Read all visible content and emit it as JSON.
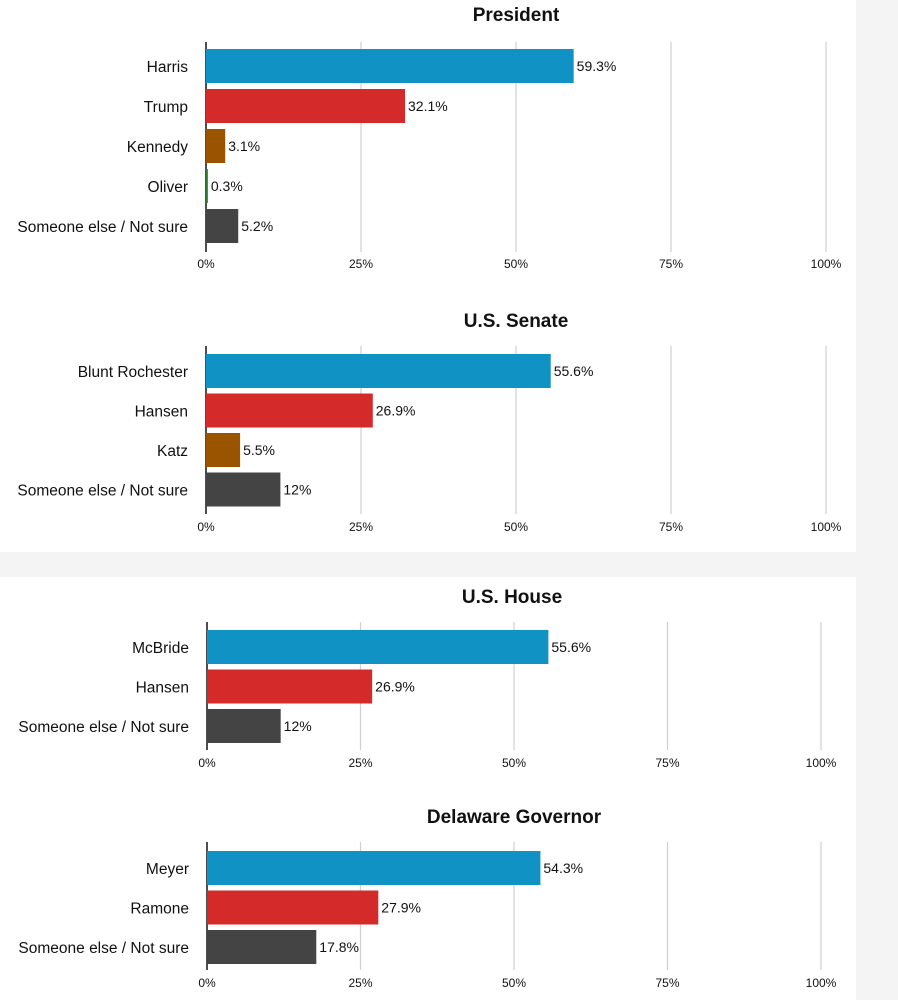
{
  "colors": {
    "blue": "#1192c4",
    "red": "#d42a2a",
    "brown": "#9a5400",
    "green": "#2e7d32",
    "gray": "#444444"
  },
  "chart_data": [
    {
      "type": "bar",
      "orientation": "horizontal",
      "title": "President",
      "categories": [
        "Harris",
        "Trump",
        "Kennedy",
        "Oliver",
        "Someone else / Not sure"
      ],
      "values": [
        59.3,
        32.1,
        3.1,
        0.3,
        5.2
      ],
      "value_labels": [
        "59.3%",
        "32.1%",
        "3.1%",
        "0.3%",
        "5.2%"
      ],
      "bar_colors": [
        "#1192c4",
        "#d42a2a",
        "#9a5400",
        "#2e7d32",
        "#444444"
      ],
      "xlim": [
        0,
        100
      ],
      "xticks": [
        "0%",
        "25%",
        "50%",
        "75%",
        "100%"
      ],
      "grid": true
    },
    {
      "type": "bar",
      "orientation": "horizontal",
      "title": "U.S. Senate",
      "categories": [
        "Blunt Rochester",
        "Hansen",
        "Katz",
        "Someone else / Not sure"
      ],
      "values": [
        55.6,
        26.9,
        5.5,
        12
      ],
      "value_labels": [
        "55.6%",
        "26.9%",
        "5.5%",
        "12%"
      ],
      "bar_colors": [
        "#1192c4",
        "#d42a2a",
        "#9a5400",
        "#444444"
      ],
      "xlim": [
        0,
        100
      ],
      "xticks": [
        "0%",
        "25%",
        "50%",
        "75%",
        "100%"
      ],
      "grid": true
    },
    {
      "type": "bar",
      "orientation": "horizontal",
      "title": "U.S. House",
      "categories": [
        "McBride",
        "Hansen",
        "Someone else / Not sure"
      ],
      "values": [
        55.6,
        26.9,
        12
      ],
      "value_labels": [
        "55.6%",
        "26.9%",
        "12%"
      ],
      "bar_colors": [
        "#1192c4",
        "#d42a2a",
        "#444444"
      ],
      "xlim": [
        0,
        100
      ],
      "xticks": [
        "0%",
        "25%",
        "50%",
        "75%",
        "100%"
      ],
      "grid": true
    },
    {
      "type": "bar",
      "orientation": "horizontal",
      "title": "Delaware Governor",
      "categories": [
        "Meyer",
        "Ramone",
        "Someone else / Not sure"
      ],
      "values": [
        54.3,
        27.9,
        17.8
      ],
      "value_labels": [
        "54.3%",
        "27.9%",
        "17.8%"
      ],
      "bar_colors": [
        "#1192c4",
        "#d42a2a",
        "#444444"
      ],
      "xlim": [
        0,
        100
      ],
      "xticks": [
        "0%",
        "25%",
        "50%",
        "75%",
        "100%"
      ],
      "grid": true
    }
  ]
}
